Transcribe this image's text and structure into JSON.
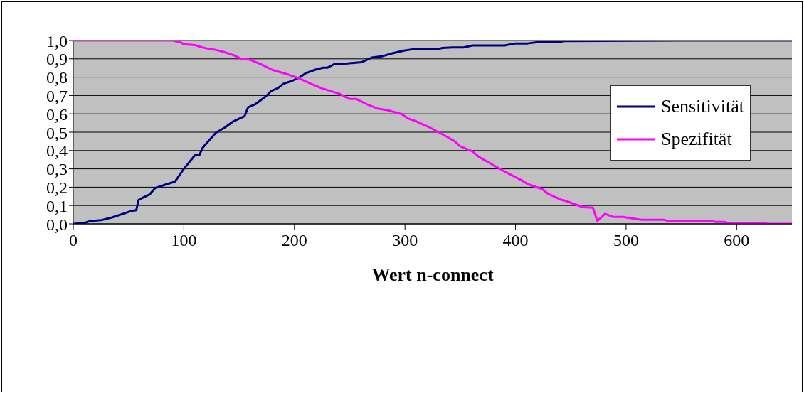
{
  "chart_data": {
    "type": "line",
    "xlabel": "Wert n-connect",
    "xlim": [
      0,
      650
    ],
    "xticks": [
      0,
      100,
      200,
      300,
      400,
      500,
      600
    ],
    "ylim": [
      0,
      1
    ],
    "yticks": [
      {
        "value": 0,
        "label": "0,0"
      },
      {
        "value": 0.1,
        "label": "0,1"
      },
      {
        "value": 0.2,
        "label": "0,2"
      },
      {
        "value": 0.3,
        "label": "0,3"
      },
      {
        "value": 0.4,
        "label": "0,4"
      },
      {
        "value": 0.5,
        "label": "0,5"
      },
      {
        "value": 0.6,
        "label": "0,6"
      },
      {
        "value": 0.7,
        "label": "0,7"
      },
      {
        "value": 0.8,
        "label": "0,8"
      },
      {
        "value": 0.9,
        "label": "0,9"
      },
      {
        "value": 1,
        "label": "1,0"
      }
    ],
    "grid": "y",
    "legend": "right",
    "marker": "none",
    "line_style": "solid",
    "series": [
      {
        "name": "Sensitivität",
        "color": "#000080",
        "x": [
          0,
          10,
          15,
          25,
          35,
          45,
          53,
          57,
          59,
          62,
          69,
          74,
          85,
          92,
          100,
          110,
          114,
          117,
          122,
          129,
          137,
          145,
          155,
          158,
          165,
          174,
          179,
          185,
          190,
          198,
          205,
          210,
          219,
          226,
          230,
          236,
          248,
          261,
          270,
          280,
          288,
          299,
          308,
          329,
          334,
          343,
          353,
          361,
          390,
          400,
          411,
          419,
          440,
          443,
          548,
          650
        ],
        "values": [
          0,
          0.005,
          0.015,
          0.02,
          0.035,
          0.055,
          0.071,
          0.075,
          0.13,
          0.14,
          0.16,
          0.195,
          0.217,
          0.23,
          0.3,
          0.374,
          0.374,
          0.415,
          0.45,
          0.497,
          0.525,
          0.56,
          0.588,
          0.635,
          0.654,
          0.695,
          0.725,
          0.74,
          0.764,
          0.78,
          0.8,
          0.821,
          0.841,
          0.852,
          0.852,
          0.871,
          0.875,
          0.882,
          0.907,
          0.915,
          0.929,
          0.945,
          0.953,
          0.953,
          0.959,
          0.962,
          0.962,
          0.973,
          0.973,
          0.984,
          0.984,
          0.99,
          0.99,
          0.997,
          1,
          1
        ]
      },
      {
        "name": "Spezifität",
        "color": "#ff00ff",
        "x": [
          0,
          90,
          97,
          100,
          110,
          115,
          122,
          128,
          135,
          145,
          152,
          160,
          170,
          180,
          192,
          204,
          215,
          225,
          240,
          250,
          256,
          265,
          275,
          284,
          297,
          303,
          310,
          321,
          329,
          338,
          345,
          350,
          361,
          367,
          374,
          390,
          406,
          411,
          424,
          430,
          441,
          445,
          461,
          470,
          474,
          481,
          488,
          498,
          500,
          514,
          534,
          538,
          577,
          581,
          589,
          592,
          624,
          628,
          650
        ],
        "values": [
          1,
          1,
          0.99,
          0.98,
          0.975,
          0.965,
          0.955,
          0.95,
          0.94,
          0.92,
          0.9,
          0.895,
          0.87,
          0.84,
          0.819,
          0.794,
          0.764,
          0.739,
          0.711,
          0.681,
          0.681,
          0.654,
          0.629,
          0.62,
          0.599,
          0.574,
          0.56,
          0.53,
          0.505,
          0.475,
          0.45,
          0.423,
          0.396,
          0.365,
          0.341,
          0.286,
          0.236,
          0.217,
          0.19,
          0.162,
          0.132,
          0.126,
          0.091,
          0.088,
          0.016,
          0.055,
          0.038,
          0.038,
          0.035,
          0.022,
          0.022,
          0.016,
          0.016,
          0.011,
          0.011,
          0.005,
          0.005,
          0,
          0
        ]
      }
    ]
  }
}
